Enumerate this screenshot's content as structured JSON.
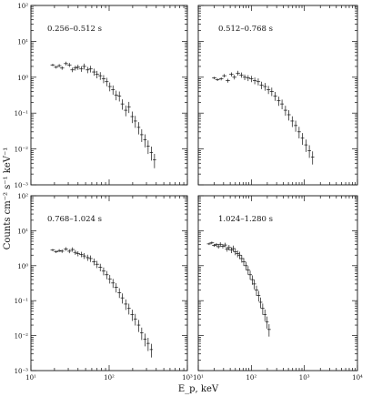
{
  "figure": {
    "ylabel": "Counts cm⁻² s⁻¹ keV⁻¹",
    "xlabel": "E_p, keV"
  },
  "chart_data": [
    {
      "type": "scatter",
      "title": "0.256–0.512 s",
      "xscale": "log",
      "yscale": "log",
      "xlim": [
        10,
        1000
      ],
      "ylim": [
        0.001,
        100
      ],
      "xticks": [
        "10¹",
        "10²",
        "10³"
      ],
      "yticks": [
        "10⁻³",
        "10⁻²",
        "10⁻¹",
        "10⁰",
        "10¹",
        "10²"
      ],
      "points": [
        [
          19,
          2.2
        ],
        [
          21,
          1.9
        ],
        [
          23,
          2.1
        ],
        [
          25,
          1.8
        ],
        [
          28,
          2.4
        ],
        [
          31,
          2.2
        ],
        [
          34,
          1.6
        ],
        [
          37,
          1.8
        ],
        [
          40,
          1.9
        ],
        [
          44,
          1.7
        ],
        [
          48,
          2.0
        ],
        [
          53,
          1.6
        ],
        [
          58,
          1.7
        ],
        [
          64,
          1.4
        ],
        [
          70,
          1.2
        ],
        [
          77,
          1.1
        ],
        [
          85,
          0.9
        ],
        [
          93,
          0.75
        ],
        [
          102,
          0.55
        ],
        [
          112,
          0.45
        ],
        [
          123,
          0.32
        ],
        [
          135,
          0.3
        ],
        [
          148,
          0.18
        ],
        [
          163,
          0.12
        ],
        [
          179,
          0.15
        ],
        [
          197,
          0.08
        ],
        [
          216,
          0.06
        ],
        [
          238,
          0.04
        ],
        [
          261,
          0.025
        ],
        [
          287,
          0.018
        ],
        [
          315,
          0.012
        ],
        [
          346,
          0.008
        ],
        [
          380,
          0.005
        ]
      ]
    },
    {
      "type": "scatter",
      "title": "0.512–0.768 s",
      "xscale": "log",
      "yscale": "log",
      "xlim": [
        10,
        10000
      ],
      "ylim": [
        0.001,
        100
      ],
      "xticks": [
        "10¹",
        "10²",
        "10³",
        "10⁴"
      ],
      "yticks": [
        "10⁻³",
        "10⁻²",
        "10⁻¹",
        "10⁰",
        "10¹",
        "10²"
      ],
      "points": [
        [
          20,
          0.95
        ],
        [
          23,
          0.85
        ],
        [
          27,
          0.9
        ],
        [
          31,
          1.1
        ],
        [
          36,
          0.8
        ],
        [
          42,
          1.2
        ],
        [
          48,
          1.0
        ],
        [
          56,
          1.3
        ],
        [
          65,
          1.15
        ],
        [
          75,
          1.0
        ],
        [
          87,
          0.95
        ],
        [
          100,
          0.9
        ],
        [
          116,
          0.8
        ],
        [
          135,
          0.75
        ],
        [
          156,
          0.6
        ],
        [
          181,
          0.55
        ],
        [
          210,
          0.45
        ],
        [
          243,
          0.4
        ],
        [
          282,
          0.3
        ],
        [
          327,
          0.22
        ],
        [
          379,
          0.18
        ],
        [
          440,
          0.12
        ],
        [
          510,
          0.09
        ],
        [
          590,
          0.06
        ],
        [
          685,
          0.045
        ],
        [
          795,
          0.03
        ],
        [
          920,
          0.02
        ],
        [
          1070,
          0.013
        ],
        [
          1240,
          0.009
        ],
        [
          1430,
          0.006
        ]
      ]
    },
    {
      "type": "scatter",
      "title": "0.768–1.024 s",
      "xscale": "log",
      "yscale": "log",
      "xlim": [
        10,
        1000
      ],
      "ylim": [
        0.001,
        100
      ],
      "xticks": [
        "10¹",
        "10²",
        "10³"
      ],
      "yticks": [
        "10⁻³",
        "10⁻²",
        "10⁻¹",
        "10⁰",
        "10¹",
        "10²"
      ],
      "points": [
        [
          19,
          2.8
        ],
        [
          21,
          2.5
        ],
        [
          23,
          2.7
        ],
        [
          25,
          2.6
        ],
        [
          28,
          3.0
        ],
        [
          31,
          2.6
        ],
        [
          34,
          2.9
        ],
        [
          37,
          2.4
        ],
        [
          40,
          2.2
        ],
        [
          44,
          2.1
        ],
        [
          48,
          1.9
        ],
        [
          53,
          1.7
        ],
        [
          58,
          1.6
        ],
        [
          64,
          1.3
        ],
        [
          70,
          1.1
        ],
        [
          77,
          0.9
        ],
        [
          85,
          0.7
        ],
        [
          93,
          0.55
        ],
        [
          102,
          0.42
        ],
        [
          112,
          0.32
        ],
        [
          123,
          0.24
        ],
        [
          135,
          0.17
        ],
        [
          148,
          0.12
        ],
        [
          163,
          0.08
        ],
        [
          179,
          0.06
        ],
        [
          197,
          0.04
        ],
        [
          216,
          0.03
        ],
        [
          238,
          0.02
        ],
        [
          261,
          0.012
        ],
        [
          287,
          0.008
        ],
        [
          315,
          0.006
        ],
        [
          346,
          0.004
        ]
      ]
    },
    {
      "type": "scatter",
      "title": "1.024–1.280 s",
      "xscale": "log",
      "yscale": "log",
      "xlim": [
        10,
        10000
      ],
      "ylim": [
        0.001,
        100
      ],
      "xticks": [
        "10¹",
        "10²",
        "10³",
        "10⁴"
      ],
      "yticks": [
        "10⁻³",
        "10⁻²",
        "10⁻¹",
        "10⁰",
        "10¹",
        "10²"
      ],
      "points": [
        [
          16,
          4.2
        ],
        [
          18,
          4.5
        ],
        [
          20,
          3.8
        ],
        [
          22,
          4.0
        ],
        [
          24,
          3.5
        ],
        [
          26,
          4.1
        ],
        [
          29,
          3.6
        ],
        [
          32,
          3.9
        ],
        [
          35,
          3.0
        ],
        [
          38,
          3.3
        ],
        [
          42,
          2.8
        ],
        [
          46,
          3.1
        ],
        [
          50,
          2.5
        ],
        [
          55,
          2.2
        ],
        [
          60,
          2.0
        ],
        [
          66,
          1.6
        ],
        [
          72,
          1.3
        ],
        [
          79,
          1.0
        ],
        [
          87,
          0.75
        ],
        [
          95,
          0.55
        ],
        [
          104,
          0.4
        ],
        [
          114,
          0.3
        ],
        [
          125,
          0.2
        ],
        [
          137,
          0.14
        ],
        [
          150,
          0.09
        ],
        [
          164,
          0.06
        ],
        [
          180,
          0.04
        ],
        [
          197,
          0.025
        ],
        [
          216,
          0.015
        ]
      ]
    }
  ]
}
